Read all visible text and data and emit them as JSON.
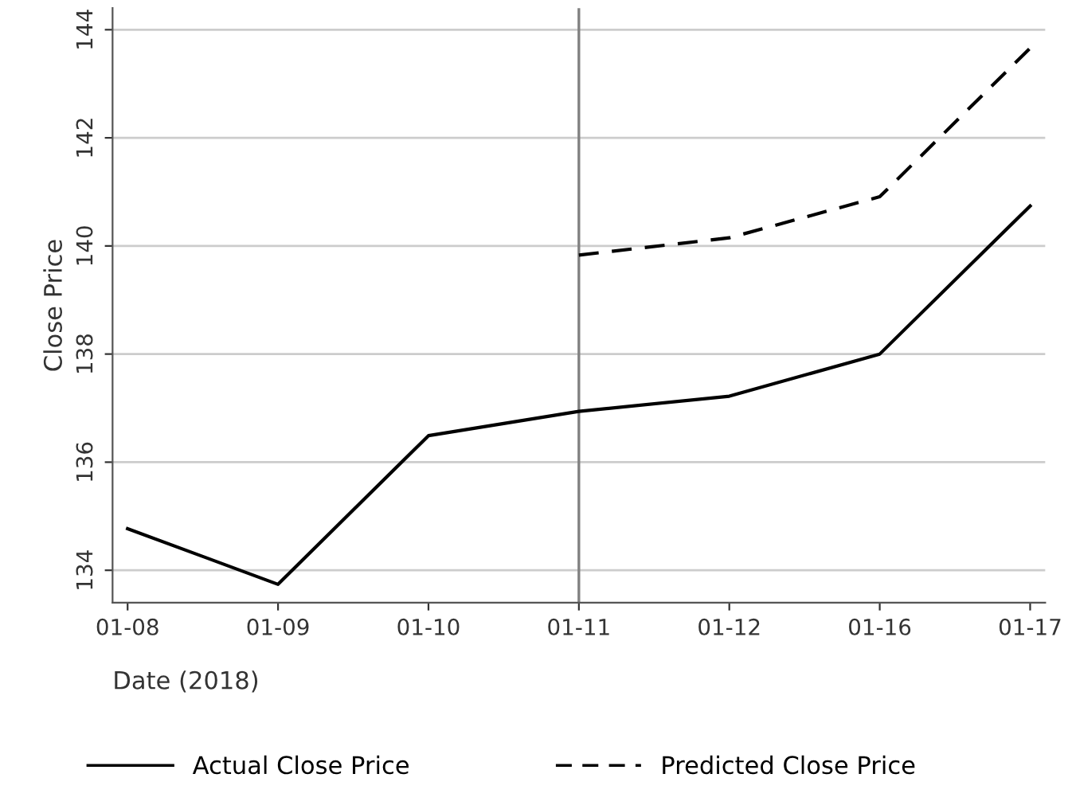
{
  "chart_data": {
    "type": "line",
    "xlabel": "Date (2018)",
    "ylabel": "Close Price",
    "categories": [
      "01-08",
      "01-09",
      "01-10",
      "01-11",
      "01-12",
      "01-16",
      "01-17"
    ],
    "series": [
      {
        "name": "Actual Close Price",
        "color": "#000000",
        "line_style": "solid",
        "values": [
          134.77,
          133.74,
          136.49,
          136.94,
          137.22,
          138.0,
          140.74
        ]
      },
      {
        "name": "Predicted Close Price",
        "color": "#000000",
        "line_style": "dashed",
        "values": [
          null,
          null,
          null,
          139.83,
          140.15,
          140.91,
          143.66
        ]
      }
    ],
    "ylim": [
      133.4,
      144.4
    ],
    "yticks": [
      134,
      136,
      138,
      140,
      142,
      144
    ],
    "ref_lines": [
      {
        "axis": "x",
        "value": "01-11",
        "color": "#808080"
      }
    ],
    "grid": "y",
    "legend": "bottom",
    "marker": "none"
  }
}
